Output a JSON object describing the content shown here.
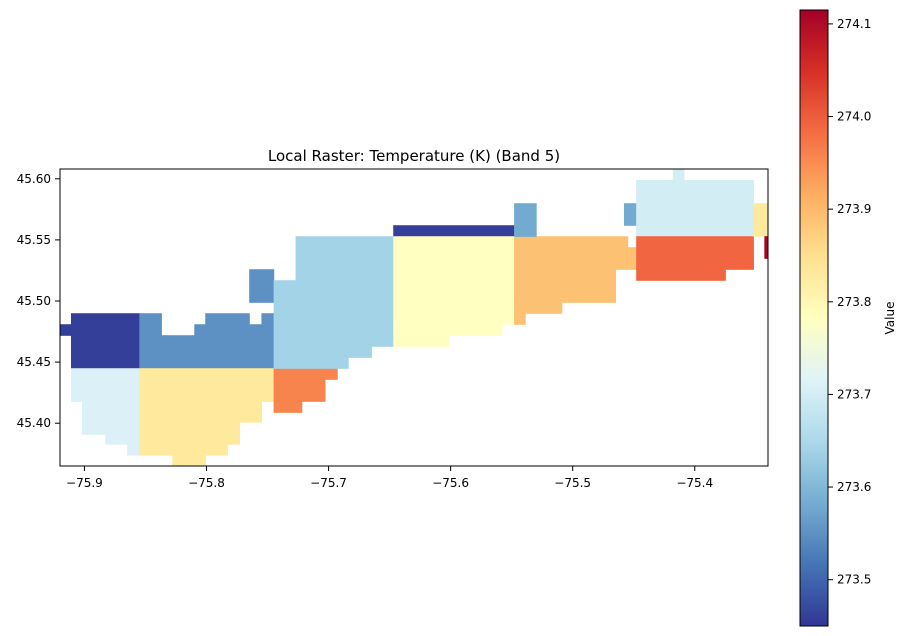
{
  "chart_data": {
    "type": "heatmap",
    "title": "Local Raster: Temperature (K) (Band 5)",
    "xlabel": "",
    "ylabel": "",
    "xlim": [
      -75.92,
      -75.34
    ],
    "ylim": [
      45.365,
      45.608
    ],
    "xticks": [
      {
        "value": -75.9,
        "label": "−75.9"
      },
      {
        "value": -75.8,
        "label": "−75.8"
      },
      {
        "value": -75.7,
        "label": "−75.7"
      },
      {
        "value": -75.6,
        "label": "−75.6"
      },
      {
        "value": -75.5,
        "label": "−75.5"
      },
      {
        "value": -75.4,
        "label": "−75.4"
      }
    ],
    "yticks": [
      {
        "value": 45.6,
        "label": "45.60"
      },
      {
        "value": 45.55,
        "label": "45.55"
      },
      {
        "value": 45.5,
        "label": "45.50"
      },
      {
        "value": 45.45,
        "label": "45.45"
      },
      {
        "value": 45.4,
        "label": "45.40"
      }
    ],
    "colorbar": {
      "label": "Value",
      "colormap": "RdYlBu_r",
      "range": [
        273.45,
        274.115
      ],
      "ticks": [
        {
          "value": 273.5,
          "label": "273.5"
        },
        {
          "value": 273.6,
          "label": "273.6"
        },
        {
          "value": 273.7,
          "label": "273.7"
        },
        {
          "value": 273.8,
          "label": "273.8"
        },
        {
          "value": 273.9,
          "label": "273.9"
        },
        {
          "value": 274.0,
          "label": "274.0"
        },
        {
          "value": 274.1,
          "label": "274.1"
        }
      ],
      "colors": [
        "#313695",
        "#4575b4",
        "#74add1",
        "#abd9e9",
        "#e0f3f8",
        "#ffffbf",
        "#fee090",
        "#fdae61",
        "#f46d43",
        "#d73027",
        "#a50026"
      ]
    },
    "regions": [
      {
        "name": "far-west-dark",
        "value": 273.46,
        "cells": [
          [
            -75.92,
            45.472,
            -75.905,
            45.481
          ],
          [
            -75.911,
            45.445,
            -75.855,
            45.49
          ]
        ]
      },
      {
        "name": "west-light",
        "value": 273.71,
        "cells": [
          [
            -75.911,
            45.418,
            -75.855,
            45.445
          ],
          [
            -75.902,
            45.391,
            -75.855,
            45.418
          ],
          [
            -75.883,
            45.383,
            -75.855,
            45.391
          ],
          [
            -75.865,
            45.374,
            -75.855,
            45.383
          ]
        ]
      },
      {
        "name": "mid-west-blue",
        "value": 273.55,
        "cells": [
          [
            -75.855,
            45.445,
            -75.745,
            45.472
          ],
          [
            -75.855,
            45.472,
            -75.837,
            45.49
          ],
          [
            -75.81,
            45.472,
            -75.745,
            45.481
          ],
          [
            -75.801,
            45.481,
            -75.765,
            45.49
          ],
          [
            -75.755,
            45.481,
            -75.745,
            45.49
          ],
          [
            -75.765,
            45.499,
            -75.745,
            45.526
          ]
        ]
      },
      {
        "name": "mid-west-yellow",
        "value": 273.83,
        "cells": [
          [
            -75.855,
            45.418,
            -75.745,
            45.445
          ],
          [
            -75.855,
            45.401,
            -75.755,
            45.418
          ],
          [
            -75.855,
            45.383,
            -75.773,
            45.401
          ],
          [
            -75.855,
            45.374,
            -75.783,
            45.383
          ],
          [
            -75.828,
            45.365,
            -75.801,
            45.374
          ]
        ]
      },
      {
        "name": "mid-orange",
        "value": 273.96,
        "cells": [
          [
            -75.745,
            45.436,
            -75.693,
            45.445
          ],
          [
            -75.745,
            45.418,
            -75.703,
            45.436
          ],
          [
            -75.745,
            45.409,
            -75.722,
            45.418
          ]
        ]
      },
      {
        "name": "center-light-blue",
        "value": 273.64,
        "cells": [
          [
            -75.727,
            45.517,
            -75.647,
            45.553
          ],
          [
            -75.745,
            45.499,
            -75.647,
            45.517
          ],
          [
            -75.745,
            45.463,
            -75.647,
            45.499
          ],
          [
            -75.745,
            45.454,
            -75.665,
            45.463
          ],
          [
            -75.745,
            45.445,
            -75.684,
            45.454
          ]
        ]
      },
      {
        "name": "center-dark-strip",
        "value": 273.46,
        "cells": [
          [
            -75.647,
            45.553,
            -75.548,
            45.562
          ]
        ]
      },
      {
        "name": "center-pale-yellow",
        "value": 273.78,
        "cells": [
          [
            -75.647,
            45.481,
            -75.548,
            45.553
          ],
          [
            -75.647,
            45.472,
            -75.558,
            45.481
          ],
          [
            -75.647,
            45.463,
            -75.601,
            45.472
          ]
        ]
      },
      {
        "name": "east-orange-light",
        "value": 273.89,
        "cells": [
          [
            -75.548,
            45.544,
            -75.455,
            45.553
          ],
          [
            -75.548,
            45.526,
            -75.448,
            45.544
          ],
          [
            -75.548,
            45.499,
            -75.465,
            45.526
          ],
          [
            -75.548,
            45.49,
            -75.509,
            45.499
          ],
          [
            -75.548,
            45.481,
            -75.539,
            45.49
          ]
        ]
      },
      {
        "name": "east-small-blue",
        "value": 273.58,
        "cells": [
          [
            -75.548,
            45.553,
            -75.53,
            45.58
          ],
          [
            -75.458,
            45.562,
            -75.448,
            45.58
          ]
        ]
      },
      {
        "name": "north-east-light",
        "value": 273.7,
        "cells": [
          [
            -75.448,
            45.553,
            -75.352,
            45.599
          ],
          [
            -75.418,
            45.599,
            -75.409,
            45.608
          ]
        ]
      },
      {
        "name": "east-red-orange",
        "value": 273.99,
        "cells": [
          [
            -75.448,
            45.526,
            -75.352,
            45.553
          ],
          [
            -75.448,
            45.517,
            -75.375,
            45.526
          ]
        ]
      },
      {
        "name": "far-east-yellow",
        "value": 273.83,
        "cells": [
          [
            -75.352,
            45.553,
            -75.34,
            45.58
          ]
        ]
      },
      {
        "name": "far-east-dark-red",
        "value": 274.11,
        "cells": [
          [
            -75.343,
            45.535,
            -75.34,
            45.553
          ]
        ]
      }
    ]
  }
}
